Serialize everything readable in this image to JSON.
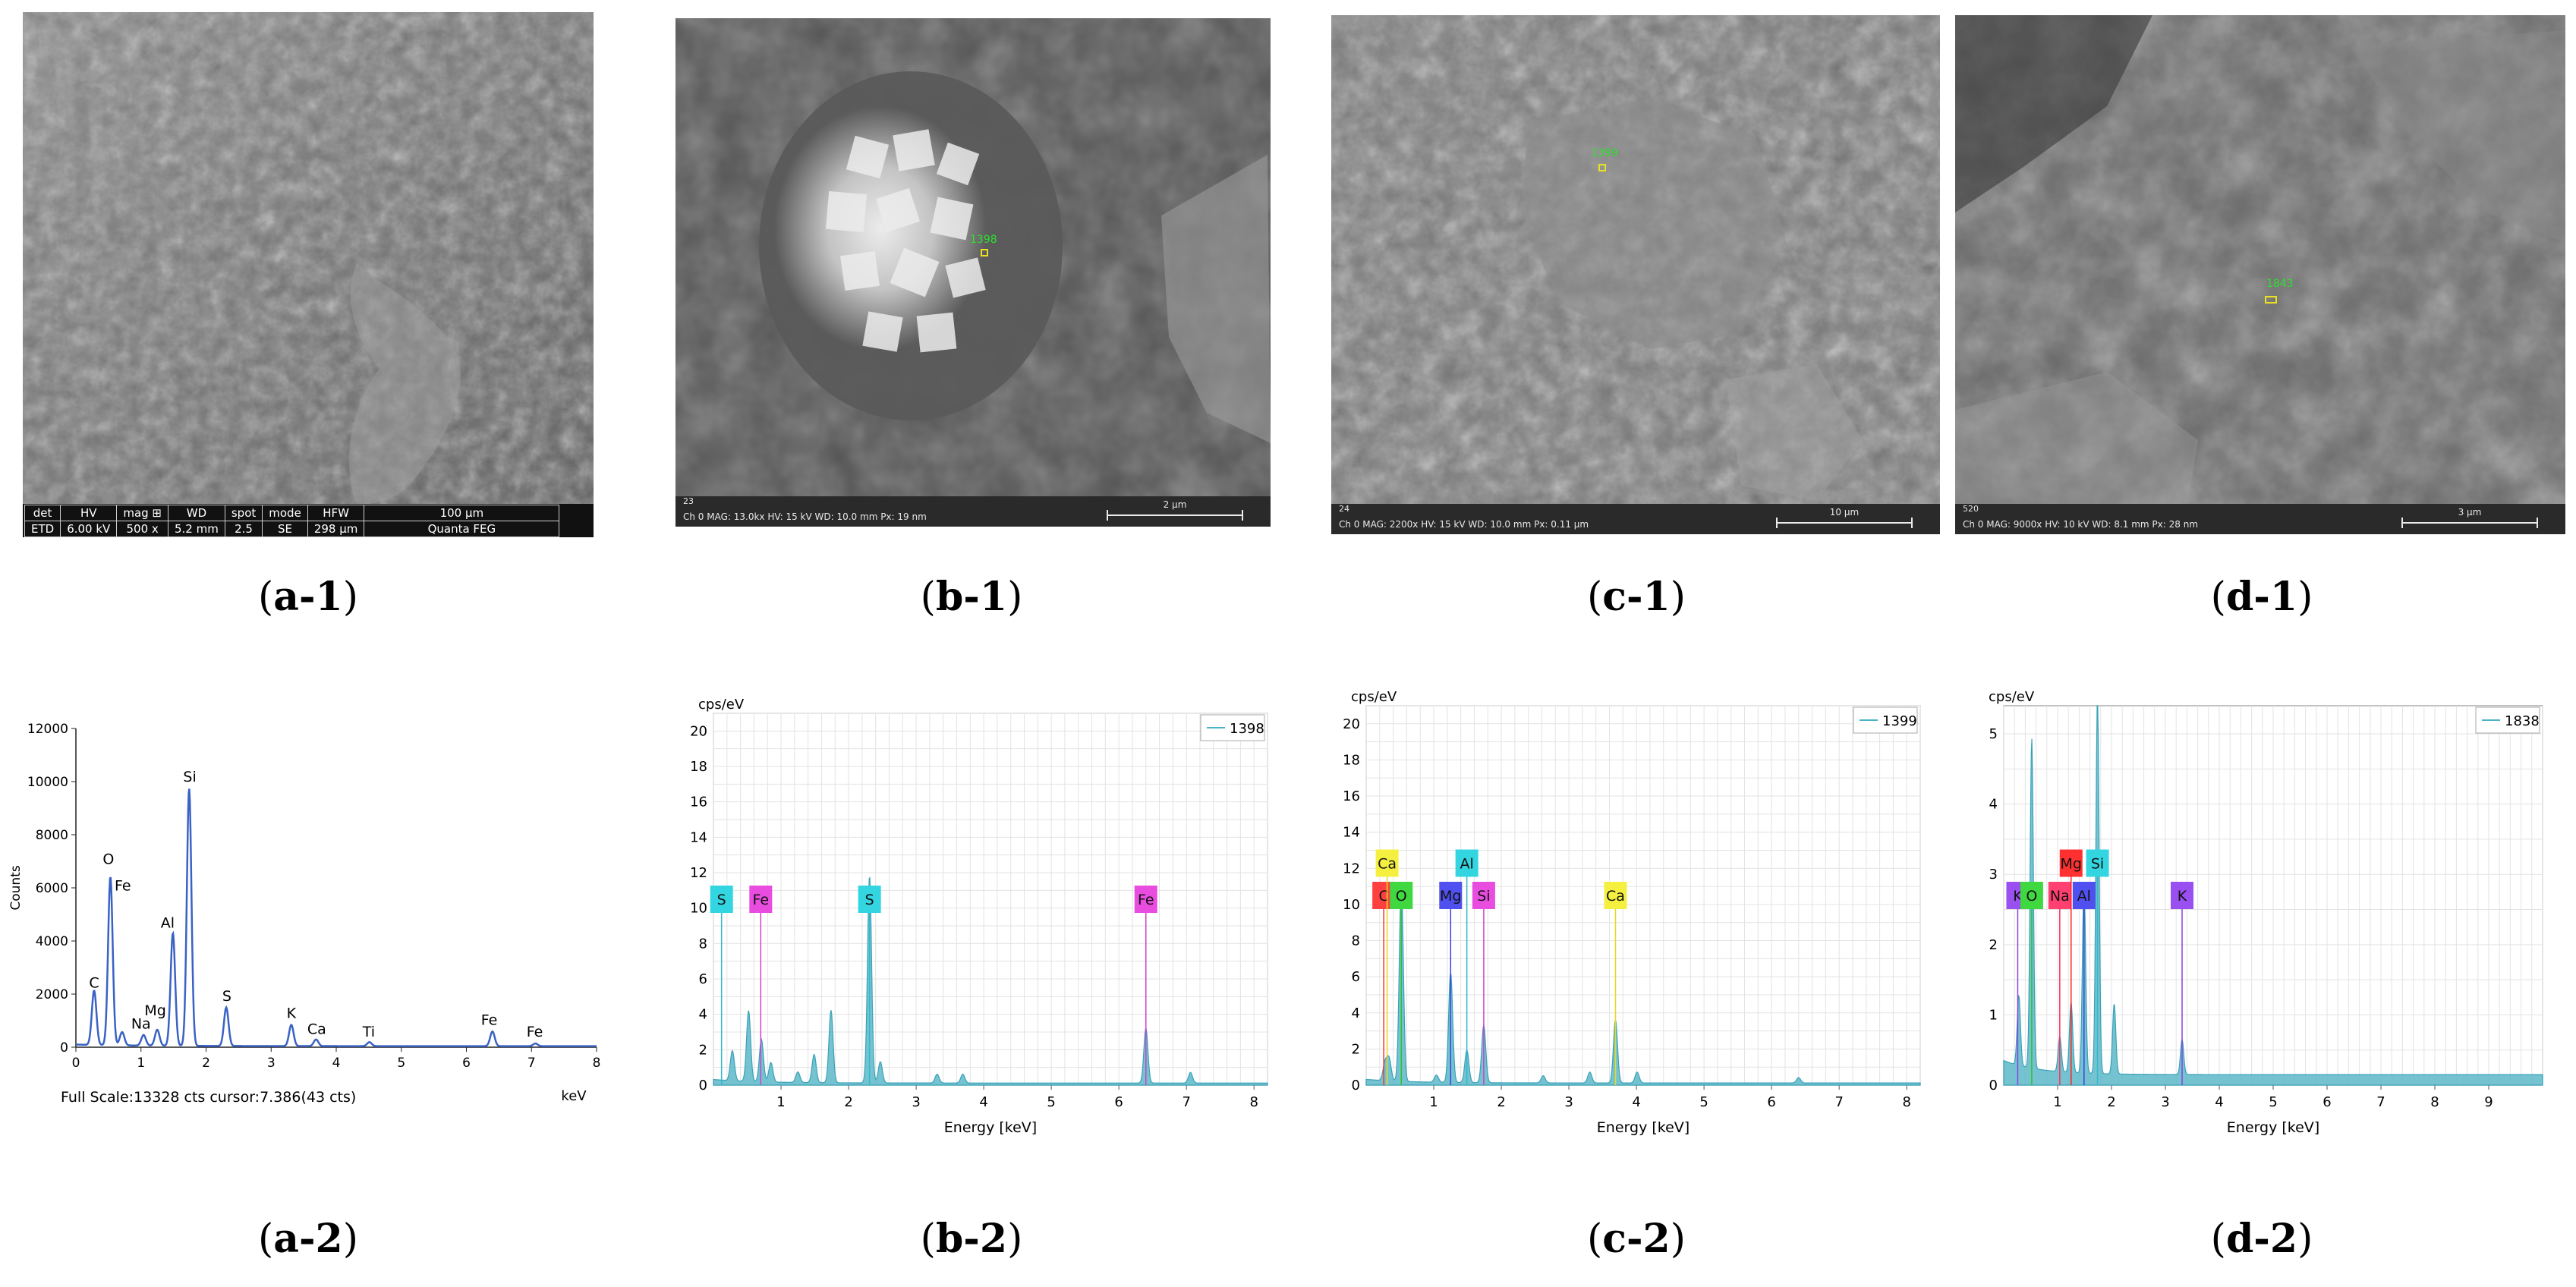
{
  "captions": {
    "a1": {
      "open": "(",
      "label": "a-1",
      "close": ")"
    },
    "b1": {
      "open": "(",
      "label": "b-1",
      "close": ")"
    },
    "c1": {
      "open": "(",
      "label": "c-1",
      "close": ")"
    },
    "d1": {
      "open": "(",
      "label": "d-1",
      "close": ")"
    },
    "a2": {
      "open": "(",
      "label": "a-2",
      "close": ")"
    },
    "b2": {
      "open": "(",
      "label": "b-2",
      "close": ")"
    },
    "c2": {
      "open": "(",
      "label": "c-2",
      "close": ")"
    },
    "d2": {
      "open": "(",
      "label": "d-2",
      "close": ")"
    }
  },
  "sem": {
    "a1": {
      "header": [
        "det",
        "HV",
        "mag ⊞",
        "WD",
        "spot",
        "mode",
        "HFW"
      ],
      "values": [
        "ETD",
        "6.00 kV",
        "500 x",
        "5.2 mm",
        "2.5",
        "SE",
        "298 µm"
      ],
      "scale_label": "100 µm",
      "instrument": "Quanta FEG"
    },
    "b1": {
      "index": "23",
      "params": "Ch 0    MAG: 13.0kx    HV: 15 kV    WD: 10.0 mm    Px: 19 nm",
      "scale_label": "2 µm",
      "spot_label": "1398"
    },
    "c1": {
      "index": "24",
      "params": "Ch 0    MAG: 2200x    HV: 15 kV    WD: 10.0 mm    Px: 0.11 µm",
      "scale_label": "10 µm",
      "spot_label": "1399"
    },
    "d1": {
      "index": "520",
      "params": "Ch 0    MAG: 9000x    HV: 10 kV    WD: 8.1 mm    Px: 28 nm",
      "scale_label": "3 µm",
      "spot_label": "1843"
    }
  },
  "chart_data": [
    {
      "id": "a2",
      "type": "line",
      "ylabel": "Counts",
      "xlabel": "keV",
      "xlim": [
        0,
        8
      ],
      "ylim": [
        0,
        12000
      ],
      "xticks": [
        0,
        1,
        2,
        3,
        4,
        5,
        6,
        7,
        8
      ],
      "yticks": [
        0,
        2000,
        4000,
        6000,
        8000,
        10000,
        12000
      ],
      "footer": "Full Scale:13328 cts  cursor:7.386(43 cts)",
      "color": "#3a62c4",
      "peaks": [
        {
          "el": "C",
          "x": 0.28,
          "y": 2050
        },
        {
          "el": "O",
          "x": 0.53,
          "y": 6350
        },
        {
          "el": "Fe",
          "x": 0.71,
          "y": 500
        },
        {
          "el": "Na",
          "x": 1.04,
          "y": 400
        },
        {
          "el": "Mg",
          "x": 1.25,
          "y": 600
        },
        {
          "el": "Al",
          "x": 1.49,
          "y": 4250
        },
        {
          "el": "Si",
          "x": 1.74,
          "y": 9700
        },
        {
          "el": "S",
          "x": 2.31,
          "y": 1450
        },
        {
          "el": "K",
          "x": 3.31,
          "y": 800
        },
        {
          "el": "Ca",
          "x": 3.69,
          "y": 250
        },
        {
          "el": "Ti",
          "x": 4.51,
          "y": 150
        },
        {
          "el": "Fe",
          "x": 6.4,
          "y": 550
        },
        {
          "el": "Fe",
          "x": 7.06,
          "y": 100
        }
      ],
      "labels": [
        {
          "text": "C",
          "x": 0.28,
          "y": 2250
        },
        {
          "text": "O",
          "x": 0.5,
          "y": 6900
        },
        {
          "text": "Fe",
          "x": 0.72,
          "y": 5900
        },
        {
          "text": "Na",
          "x": 1.0,
          "y": 700
        },
        {
          "text": "Mg",
          "x": 1.22,
          "y": 1200
        },
        {
          "text": "Al",
          "x": 1.41,
          "y": 4500
        },
        {
          "text": "Si",
          "x": 1.75,
          "y": 10000
        },
        {
          "text": "S",
          "x": 2.32,
          "y": 1750
        },
        {
          "text": "K",
          "x": 3.31,
          "y": 1100
        },
        {
          "text": "Ca",
          "x": 3.7,
          "y": 500
        },
        {
          "text": "Ti",
          "x": 4.5,
          "y": 400
        },
        {
          "text": "Fe",
          "x": 6.35,
          "y": 850
        },
        {
          "text": "Fe",
          "x": 7.05,
          "y": 400
        }
      ]
    },
    {
      "id": "b2",
      "type": "area",
      "ylabel": "cps/eV",
      "xlabel": "Energy [keV]",
      "xlim": [
        0,
        8.2
      ],
      "ylim": [
        0,
        21
      ],
      "xticks": [
        1,
        2,
        3,
        4,
        5,
        6,
        7,
        8
      ],
      "yticks": [
        0,
        2,
        4,
        6,
        8,
        10,
        12,
        14,
        16,
        18,
        20
      ],
      "legend": "1398",
      "color": "#4ab3c8",
      "peaks": [
        {
          "x": 0.28,
          "y": 1.7
        },
        {
          "x": 0.52,
          "y": 4.0
        },
        {
          "x": 0.71,
          "y": 2.4
        },
        {
          "x": 0.85,
          "y": 1.1
        },
        {
          "x": 1.25,
          "y": 0.6
        },
        {
          "x": 1.49,
          "y": 1.6
        },
        {
          "x": 1.74,
          "y": 4.1
        },
        {
          "x": 2.31,
          "y": 11.7
        },
        {
          "x": 2.47,
          "y": 1.2
        },
        {
          "x": 3.31,
          "y": 0.5
        },
        {
          "x": 3.69,
          "y": 0.5
        },
        {
          "x": 6.4,
          "y": 3.1
        },
        {
          "x": 7.06,
          "y": 0.6
        }
      ],
      "markers": [
        {
          "el": "S",
          "x": 0.12,
          "color": "#33d6e0",
          "line": "#33b8cc"
        },
        {
          "el": "Fe",
          "x": 0.7,
          "color": "#e84de0",
          "line": "#d040c8"
        },
        {
          "el": "S",
          "x": 2.31,
          "color": "#33d6e0",
          "line": "#33b8cc"
        },
        {
          "el": "Fe",
          "x": 6.4,
          "color": "#e84de0",
          "line": "#d040c8"
        }
      ]
    },
    {
      "id": "c2",
      "type": "area",
      "ylabel": "cps/eV",
      "xlabel": "Energy [keV]",
      "xlim": [
        0,
        8.2
      ],
      "ylim": [
        0,
        21
      ],
      "xticks": [
        1,
        2,
        3,
        4,
        5,
        6,
        7,
        8
      ],
      "yticks": [
        0,
        2,
        4,
        6,
        8,
        10,
        12,
        14,
        16,
        18,
        20
      ],
      "legend": "1399",
      "color": "#4ab3c8",
      "peaks": [
        {
          "x": 0.28,
          "y": 1.0
        },
        {
          "x": 0.34,
          "y": 1.2
        },
        {
          "x": 0.52,
          "y": 11.0
        },
        {
          "x": 1.04,
          "y": 0.4
        },
        {
          "x": 1.25,
          "y": 6.1
        },
        {
          "x": 1.49,
          "y": 1.8
        },
        {
          "x": 1.74,
          "y": 3.2
        },
        {
          "x": 2.62,
          "y": 0.4
        },
        {
          "x": 3.31,
          "y": 0.6
        },
        {
          "x": 3.69,
          "y": 3.5
        },
        {
          "x": 4.01,
          "y": 0.6
        },
        {
          "x": 6.4,
          "y": 0.3
        }
      ],
      "markers": [
        {
          "el": "C",
          "x": 0.26,
          "color": "#ff4040",
          "line": "#ff3030",
          "row": 1
        },
        {
          "el": "Ca",
          "x": 0.31,
          "color": "#f5f040",
          "line": "#e8d820",
          "row": 2
        },
        {
          "el": "O",
          "x": 0.52,
          "color": "#40d840",
          "line": "#30c030",
          "row": 1
        },
        {
          "el": "Mg",
          "x": 1.25,
          "color": "#5050f0",
          "line": "#4040e0",
          "row": 1
        },
        {
          "el": "Al",
          "x": 1.49,
          "color": "#33d6e0",
          "line": "#33b8cc",
          "row": 2
        },
        {
          "el": "Si",
          "x": 1.74,
          "color": "#e84de0",
          "line": "#d040c8",
          "row": 1
        },
        {
          "el": "Ca",
          "x": 3.69,
          "color": "#f5f040",
          "line": "#e8d820",
          "row": 1
        }
      ]
    },
    {
      "id": "d2",
      "type": "area",
      "ylabel": "cps/eV",
      "xlabel": "Energy [keV]",
      "xlim": [
        0,
        10
      ],
      "ylim": [
        0,
        5.4
      ],
      "xticks": [
        1,
        2,
        3,
        4,
        5,
        6,
        7,
        8,
        9
      ],
      "yticks": [
        0,
        1,
        2,
        3,
        4,
        5
      ],
      "legend": "1838",
      "color": "#4ab3c8",
      "peaks": [
        {
          "x": 0.28,
          "y": 1.0
        },
        {
          "x": 0.52,
          "y": 4.7
        },
        {
          "x": 1.04,
          "y": 0.5
        },
        {
          "x": 1.25,
          "y": 1.0
        },
        {
          "x": 1.49,
          "y": 2.7
        },
        {
          "x": 1.74,
          "y": 5.4
        },
        {
          "x": 2.05,
          "y": 1.0
        },
        {
          "x": 3.31,
          "y": 0.5
        }
      ],
      "markers": [
        {
          "el": "K",
          "x": 0.26,
          "color": "#9a50f0",
          "line": "#8a40e0",
          "row": 1
        },
        {
          "el": "O",
          "x": 0.52,
          "color": "#40d840",
          "line": "#30c030",
          "row": 1
        },
        {
          "el": "Na",
          "x": 1.04,
          "color": "#ff4070",
          "line": "#ff3060",
          "row": 1
        },
        {
          "el": "Mg",
          "x": 1.25,
          "color": "#ff3030",
          "line": "#ff2020",
          "row": 2
        },
        {
          "el": "Al",
          "x": 1.49,
          "color": "#5050f0",
          "line": "#4040e0",
          "row": 1
        },
        {
          "el": "Si",
          "x": 1.74,
          "color": "#33d6e0",
          "line": "#33b8cc",
          "row": 2
        },
        {
          "el": "K",
          "x": 3.31,
          "color": "#9a50f0",
          "line": "#8a40e0",
          "row": 1
        }
      ]
    }
  ]
}
